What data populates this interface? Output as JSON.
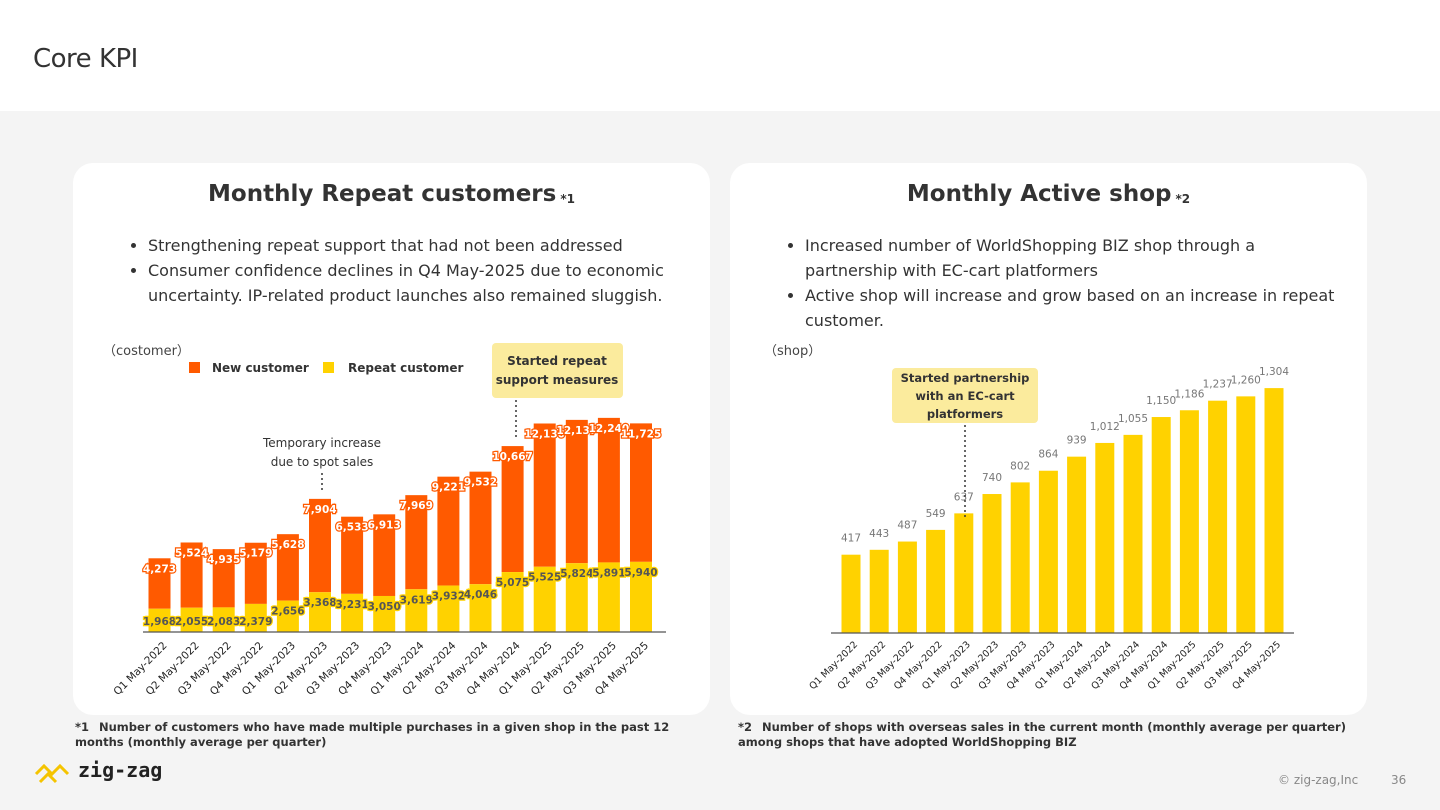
{
  "page": {
    "title": "Core KPI",
    "copyright": "© zig-zag,Inc",
    "page_number": "36",
    "logo_text": "zig-zag"
  },
  "left_card": {
    "title": "Monthly Repeat customers",
    "note_mark": "*1",
    "bullets": [
      "Strengthening repeat support that had not been addressed",
      "Consumer confidence declines in Q4 May-2025 due to economic uncertainty. IP-related product launches also remained sluggish."
    ],
    "unit_label": "（costomer）",
    "callout": "Started repeat support measures",
    "annotation": "Temporary increase due to spot sales"
  },
  "right_card": {
    "title": "Monthly Active shop",
    "note_mark": "*2",
    "bullets": [
      "Increased number of WorldShopping BIZ shop through a partnership with EC-cart platformers",
      "Active shop will increase and grow based on an increase in repeat customer."
    ],
    "unit_label": "（shop）",
    "callout": "Started partnership with an EC-cart platformers"
  },
  "footnotes": {
    "one": {
      "mark": "*1",
      "text": "Number of customers who have made multiple purchases in a given shop in the past 12 months (monthly average per quarter)"
    },
    "two": {
      "mark": "*2",
      "text": "Number of shops with overseas sales in the current month (monthly average per quarter) among shops that have adopted WorldShopping BIZ"
    }
  },
  "colors": {
    "new": "#ff5a00",
    "repeat": "#ffd200",
    "callout_bg": "#fbeb9d"
  },
  "chart_data": [
    {
      "type": "bar",
      "stacked": true,
      "categories": [
        "Q1 May-2022",
        "Q2 May-2022",
        "Q3 May-2022",
        "Q4 May-2022",
        "Q1 May-2023",
        "Q2 May-2023",
        "Q3 May-2023",
        "Q4 May-2023",
        "Q1 May-2024",
        "Q2 May-2024",
        "Q3 May-2024",
        "Q4 May-2024",
        "Q1 May-2025",
        "Q2 May-2025",
        "Q3 May-2025",
        "Q4 May-2025"
      ],
      "series": [
        {
          "name": "Repeat customer",
          "values": [
            1968,
            2055,
            2083,
            2379,
            2656,
            3368,
            3231,
            3050,
            3619,
            3932,
            4046,
            5075,
            5525,
            5824,
            5891,
            5940
          ]
        },
        {
          "name": "New customer",
          "values": [
            4273,
            5524,
            4935,
            5179,
            5628,
            7904,
            6533,
            6913,
            7969,
            9221,
            9532,
            10667,
            12130,
            12137,
            12240,
            11725
          ]
        }
      ],
      "legend": "top-left",
      "ylim": [
        0,
        18500
      ]
    },
    {
      "type": "bar",
      "categories": [
        "Q1 May-2022",
        "Q2 May-2022",
        "Q3 May-2022",
        "Q4 May-2022",
        "Q1 May-2023",
        "Q2 May-2023",
        "Q3 May-2023",
        "Q4 May-2023",
        "Q1 May-2024",
        "Q2 May-2024",
        "Q3 May-2024",
        "Q4 May-2024",
        "Q1 May-2025",
        "Q2 May-2025",
        "Q3 May-2025",
        "Q4 May-2025"
      ],
      "values": [
        417,
        443,
        487,
        549,
        637,
        740,
        802,
        864,
        939,
        1012,
        1055,
        1150,
        1186,
        1237,
        1260,
        1304
      ],
      "ylim": [
        0,
        1400
      ]
    }
  ]
}
